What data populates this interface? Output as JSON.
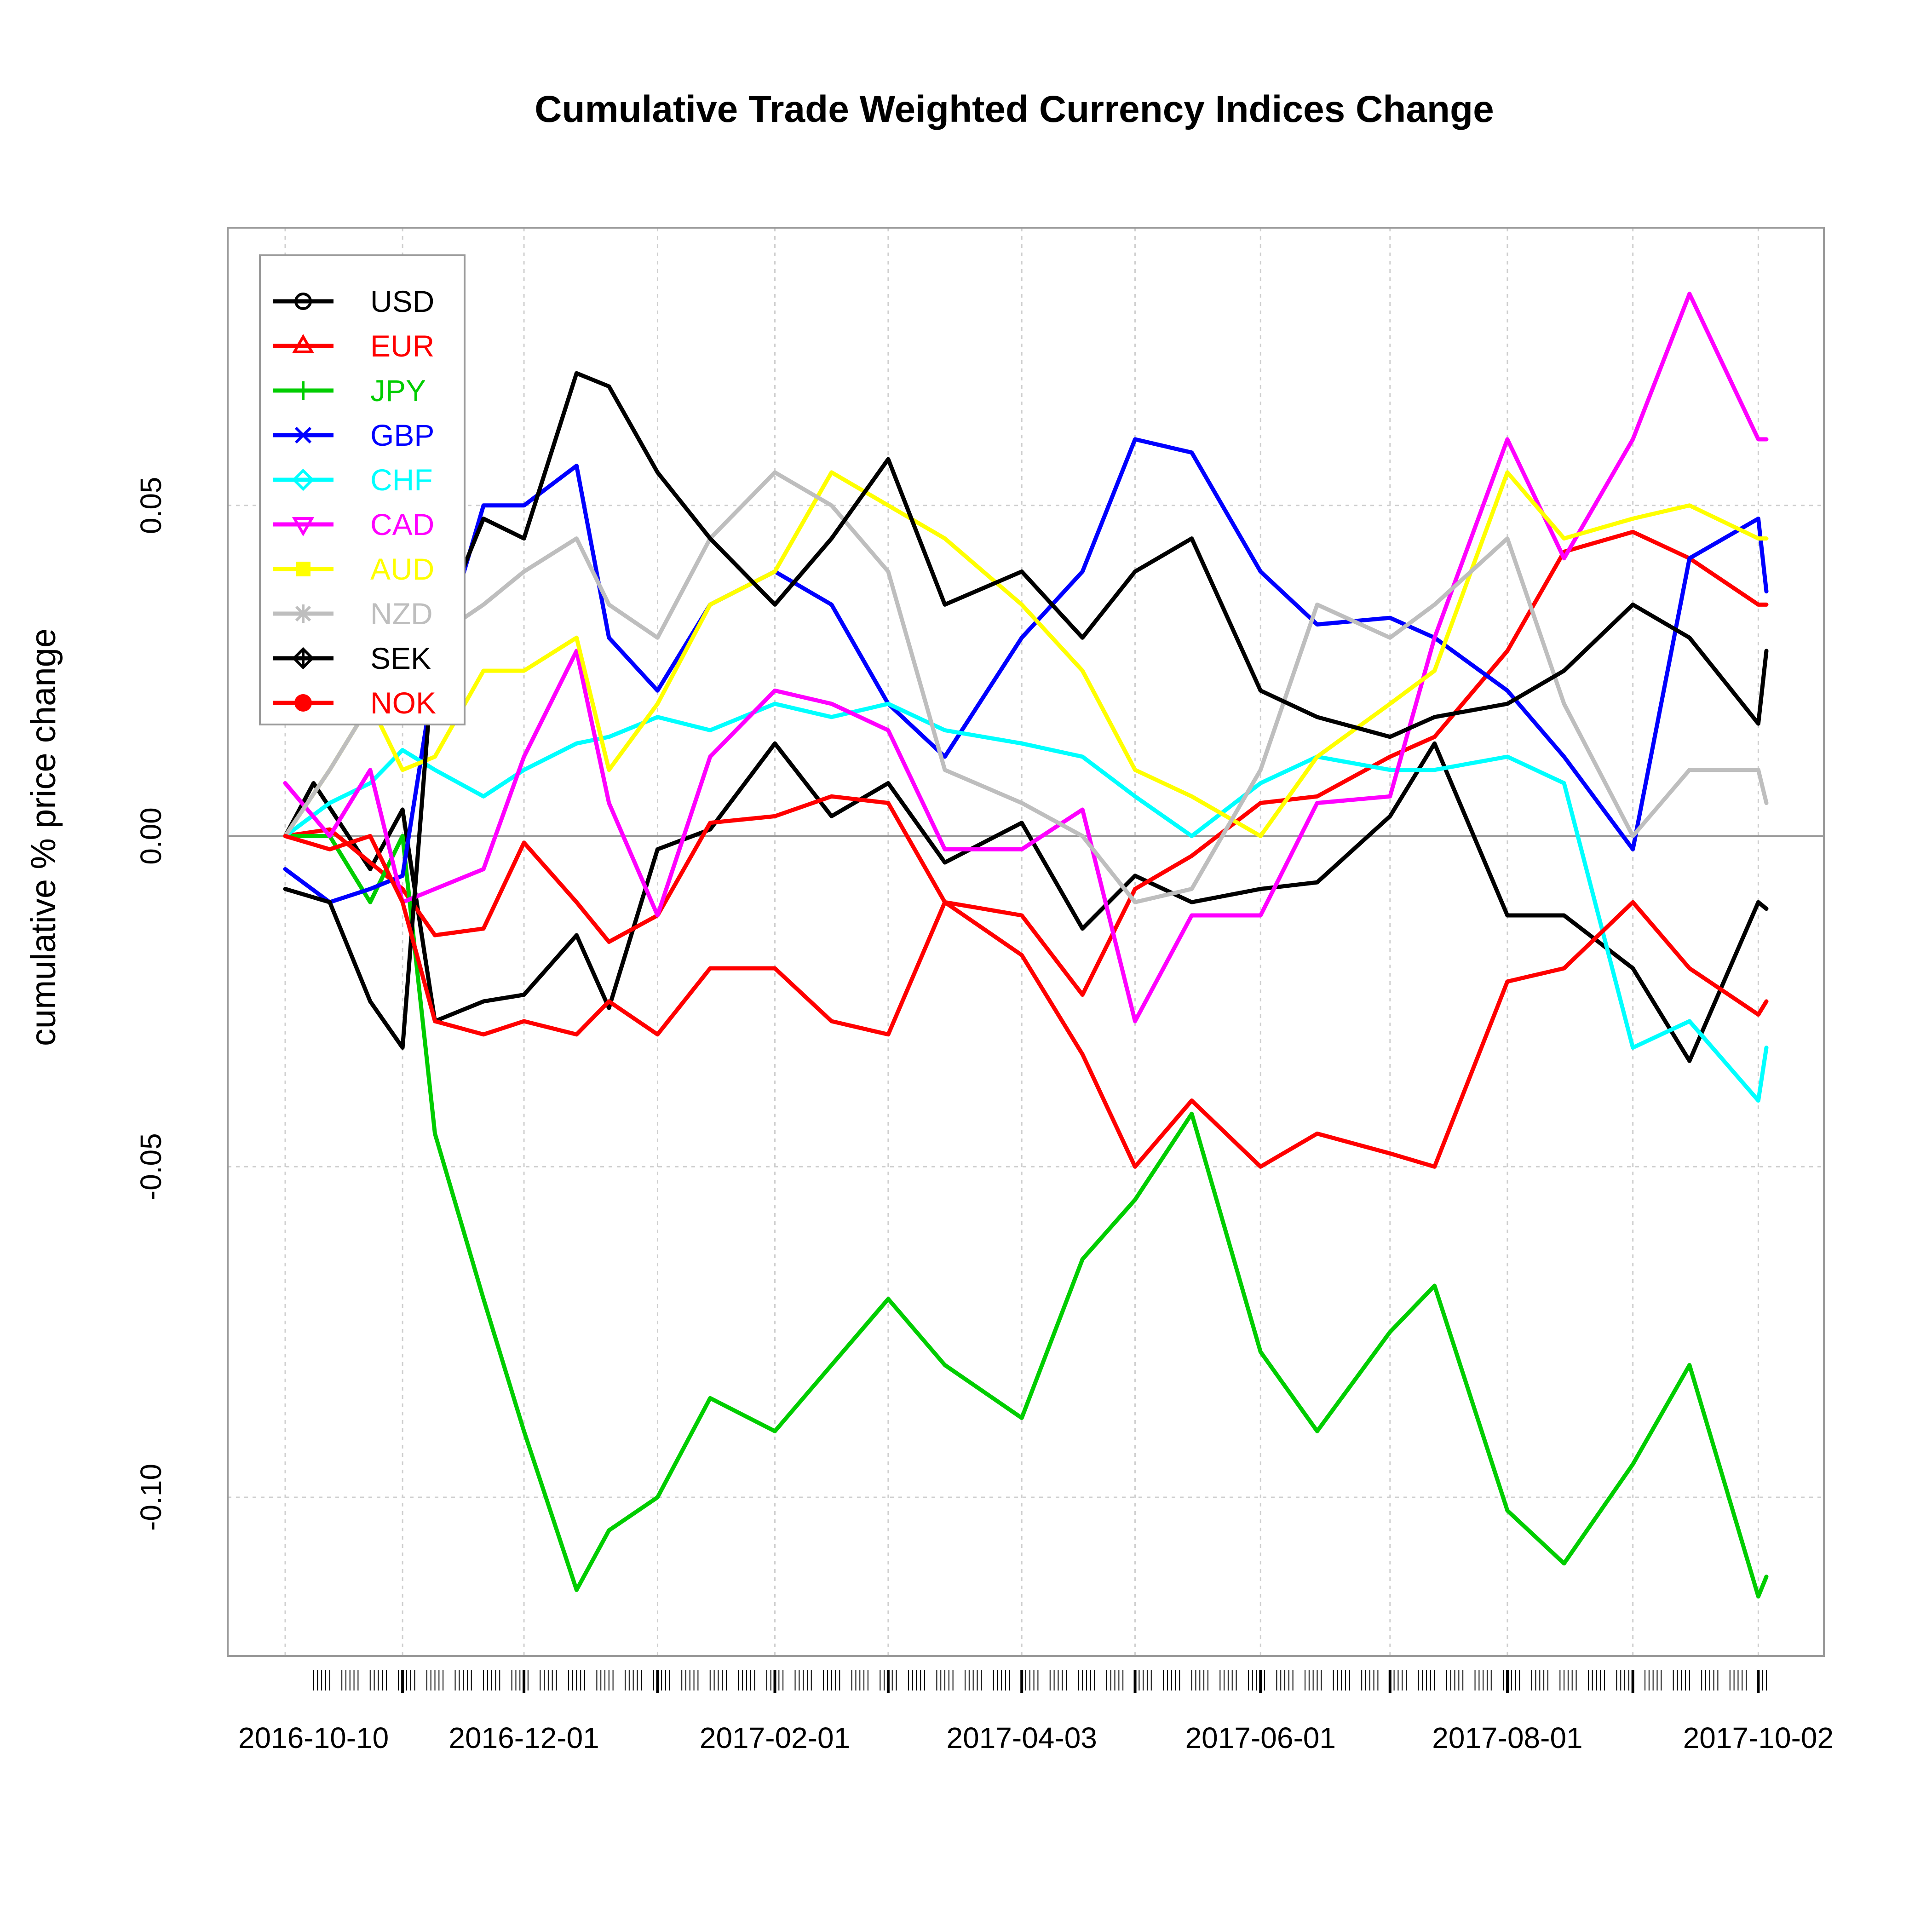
{
  "chart_data": {
    "type": "line",
    "title": "Cumulative Trade Weighted Currency Indices Change",
    "xlabel": "",
    "ylabel": "cumulative % price change",
    "x_range": [
      "2016-10-03",
      "2017-10-04"
    ],
    "ylim": [
      -0.124,
      0.092
    ],
    "y_ticks": [
      -0.1,
      -0.05,
      0.0,
      0.05
    ],
    "y_tick_labels": [
      "-0.10",
      "-0.05",
      "0.00",
      "0.05"
    ],
    "x_tick_dates": [
      "2016-10-10",
      "2016-12-01",
      "2017-02-01",
      "2017-04-03",
      "2017-06-01",
      "2017-08-01",
      "2017-10-02"
    ],
    "x_tick_labels": [
      "2016-10-10",
      "2016-12-01",
      "2017-02-01",
      "2017-04-03",
      "2017-06-01",
      "2017-08-01",
      "2017-10-02"
    ],
    "x_grid_dates": [
      "2016-10-03",
      "2016-11-01",
      "2016-12-01",
      "2017-01-03",
      "2017-02-01",
      "2017-03-01",
      "2017-04-03",
      "2017-05-01",
      "2017-06-01",
      "2017-07-03",
      "2017-08-01",
      "2017-09-01",
      "2017-10-02"
    ],
    "grid": true,
    "zero_line": true,
    "legend_position": "top-left",
    "series": [
      {
        "name": "USD",
        "color": "#000000",
        "marker": "circle",
        "x": [
          "2016-10-03",
          "2016-10-10",
          "2016-10-24",
          "2016-11-01",
          "2016-11-09",
          "2016-11-21",
          "2016-12-01",
          "2016-12-14",
          "2016-12-22",
          "2017-01-03",
          "2017-01-16",
          "2017-02-01",
          "2017-02-15",
          "2017-03-01",
          "2017-03-15",
          "2017-04-03",
          "2017-04-18",
          "2017-05-01",
          "2017-05-15",
          "2017-06-01",
          "2017-06-15",
          "2017-07-03",
          "2017-07-14",
          "2017-08-01",
          "2017-08-15",
          "2017-09-01",
          "2017-09-15",
          "2017-10-02",
          "2017-10-04"
        ],
        "y": [
          0.0,
          0.008,
          -0.005,
          0.004,
          -0.028,
          -0.025,
          -0.024,
          -0.015,
          -0.026,
          -0.002,
          0.001,
          0.014,
          0.003,
          0.008,
          -0.004,
          0.002,
          -0.014,
          -0.006,
          -0.01,
          -0.008,
          -0.007,
          0.003,
          0.014,
          -0.012,
          -0.012,
          -0.02,
          -0.034,
          -0.01,
          -0.011
        ]
      },
      {
        "name": "EUR",
        "color": "#ff0000",
        "marker": "triangle",
        "x": [
          "2016-10-03",
          "2016-10-14",
          "2016-10-24",
          "2016-11-01",
          "2016-11-09",
          "2016-11-21",
          "2016-12-01",
          "2016-12-14",
          "2016-12-22",
          "2017-01-03",
          "2017-01-16",
          "2017-02-01",
          "2017-02-15",
          "2017-03-01",
          "2017-03-15",
          "2017-04-03",
          "2017-04-18",
          "2017-05-01",
          "2017-05-15",
          "2017-06-01",
          "2017-06-15",
          "2017-07-03",
          "2017-07-14",
          "2017-08-01",
          "2017-08-15",
          "2017-09-01",
          "2017-09-15",
          "2017-10-02",
          "2017-10-04"
        ],
        "y": [
          0.0,
          0.001,
          -0.004,
          -0.008,
          -0.015,
          -0.014,
          -0.001,
          -0.01,
          -0.016,
          -0.012,
          0.002,
          0.003,
          0.006,
          0.005,
          -0.01,
          -0.012,
          -0.024,
          -0.008,
          -0.003,
          0.005,
          0.006,
          0.012,
          0.015,
          0.028,
          0.043,
          0.046,
          0.042,
          0.035,
          0.035
        ]
      },
      {
        "name": "JPY",
        "color": "#00cd00",
        "marker": "plus",
        "x": [
          "2016-10-03",
          "2016-10-14",
          "2016-10-24",
          "2016-11-01",
          "2016-11-09",
          "2016-11-21",
          "2016-12-01",
          "2016-12-14",
          "2016-12-22",
          "2017-01-03",
          "2017-01-16",
          "2017-02-01",
          "2017-02-15",
          "2017-03-01",
          "2017-03-15",
          "2017-04-03",
          "2017-04-18",
          "2017-05-01",
          "2017-05-15",
          "2017-06-01",
          "2017-06-15",
          "2017-07-03",
          "2017-07-14",
          "2017-08-01",
          "2017-08-15",
          "2017-09-01",
          "2017-09-15",
          "2017-10-02",
          "2017-10-04"
        ],
        "y": [
          0.0,
          0.0,
          -0.01,
          0.0,
          -0.045,
          -0.07,
          -0.09,
          -0.114,
          -0.105,
          -0.1,
          -0.085,
          -0.09,
          -0.08,
          -0.07,
          -0.08,
          -0.088,
          -0.064,
          -0.055,
          -0.042,
          -0.078,
          -0.09,
          -0.075,
          -0.068,
          -0.102,
          -0.11,
          -0.095,
          -0.08,
          -0.115,
          -0.112
        ]
      },
      {
        "name": "GBP",
        "color": "#0000ff",
        "marker": "cross",
        "x": [
          "2016-10-03",
          "2016-10-14",
          "2016-10-24",
          "2016-11-01",
          "2016-11-09",
          "2016-11-21",
          "2016-12-01",
          "2016-12-14",
          "2016-12-22",
          "2017-01-03",
          "2017-01-16",
          "2017-02-01",
          "2017-02-15",
          "2017-03-01",
          "2017-03-15",
          "2017-04-03",
          "2017-04-18",
          "2017-05-01",
          "2017-05-15",
          "2017-06-01",
          "2017-06-15",
          "2017-07-03",
          "2017-07-14",
          "2017-08-01",
          "2017-08-15",
          "2017-09-01",
          "2017-09-15",
          "2017-10-02",
          "2017-10-04"
        ],
        "y": [
          -0.005,
          -0.01,
          -0.008,
          -0.006,
          0.025,
          0.05,
          0.05,
          0.056,
          0.03,
          0.022,
          0.035,
          0.04,
          0.035,
          0.02,
          0.012,
          0.03,
          0.04,
          0.06,
          0.058,
          0.04,
          0.032,
          0.033,
          0.03,
          0.022,
          0.012,
          -0.002,
          0.042,
          0.048,
          0.037
        ]
      },
      {
        "name": "CHF",
        "color": "#00ffff",
        "marker": "diamond",
        "x": [
          "2016-10-03",
          "2016-10-14",
          "2016-10-24",
          "2016-11-01",
          "2016-11-09",
          "2016-11-21",
          "2016-12-01",
          "2016-12-14",
          "2016-12-22",
          "2017-01-03",
          "2017-01-16",
          "2017-02-01",
          "2017-02-15",
          "2017-03-01",
          "2017-03-15",
          "2017-04-03",
          "2017-04-18",
          "2017-05-01",
          "2017-05-15",
          "2017-06-01",
          "2017-06-15",
          "2017-07-03",
          "2017-07-14",
          "2017-08-01",
          "2017-08-15",
          "2017-09-01",
          "2017-09-15",
          "2017-10-02",
          "2017-10-04"
        ],
        "y": [
          0.0,
          0.005,
          0.008,
          0.013,
          0.01,
          0.006,
          0.01,
          0.014,
          0.015,
          0.018,
          0.016,
          0.02,
          0.018,
          0.02,
          0.016,
          0.014,
          0.012,
          0.006,
          0.0,
          0.008,
          0.012,
          0.01,
          0.01,
          0.012,
          0.008,
          -0.032,
          -0.028,
          -0.04,
          -0.032
        ]
      },
      {
        "name": "CAD",
        "color": "#ff00ff",
        "marker": "triangle-down",
        "x": [
          "2016-10-03",
          "2016-10-14",
          "2016-10-24",
          "2016-11-01",
          "2016-11-09",
          "2016-11-21",
          "2016-12-01",
          "2016-12-14",
          "2016-12-22",
          "2017-01-03",
          "2017-01-16",
          "2017-02-01",
          "2017-02-15",
          "2017-03-01",
          "2017-03-15",
          "2017-04-03",
          "2017-04-18",
          "2017-05-01",
          "2017-05-15",
          "2017-06-01",
          "2017-06-15",
          "2017-07-03",
          "2017-07-14",
          "2017-08-01",
          "2017-08-15",
          "2017-09-01",
          "2017-09-15",
          "2017-10-02",
          "2017-10-04"
        ],
        "y": [
          0.008,
          0.0,
          0.01,
          -0.01,
          -0.008,
          -0.005,
          0.012,
          0.028,
          0.005,
          -0.012,
          0.012,
          0.022,
          0.02,
          0.016,
          -0.002,
          -0.002,
          0.004,
          -0.028,
          -0.012,
          -0.012,
          0.005,
          0.006,
          0.03,
          0.06,
          0.042,
          0.06,
          0.082,
          0.06,
          0.06
        ]
      },
      {
        "name": "AUD",
        "color": "#ffff00",
        "marker": "square",
        "x": [
          "2016-10-03",
          "2016-10-14",
          "2016-10-24",
          "2016-11-01",
          "2016-11-09",
          "2016-11-21",
          "2016-12-01",
          "2016-12-14",
          "2016-12-22",
          "2017-01-03",
          "2017-01-16",
          "2017-02-01",
          "2017-02-15",
          "2017-03-01",
          "2017-03-15",
          "2017-04-03",
          "2017-04-18",
          "2017-05-01",
          "2017-05-15",
          "2017-06-01",
          "2017-06-15",
          "2017-07-03",
          "2017-07-14",
          "2017-08-01",
          "2017-08-15",
          "2017-09-01",
          "2017-09-15",
          "2017-10-02",
          "2017-10-04"
        ],
        "y": [
          0.0,
          0.01,
          0.02,
          0.01,
          0.012,
          0.025,
          0.025,
          0.03,
          0.01,
          0.02,
          0.035,
          0.04,
          0.055,
          0.05,
          0.045,
          0.035,
          0.025,
          0.01,
          0.006,
          0.0,
          0.012,
          0.02,
          0.025,
          0.055,
          0.045,
          0.048,
          0.05,
          0.045,
          0.045
        ]
      },
      {
        "name": "NZD",
        "color": "#bebebe",
        "marker": "asterisk",
        "x": [
          "2016-10-03",
          "2016-10-14",
          "2016-10-24",
          "2016-11-01",
          "2016-11-09",
          "2016-11-21",
          "2016-12-01",
          "2016-12-14",
          "2016-12-22",
          "2017-01-03",
          "2017-01-16",
          "2017-02-01",
          "2017-02-15",
          "2017-03-01",
          "2017-03-15",
          "2017-04-03",
          "2017-04-18",
          "2017-05-01",
          "2017-05-15",
          "2017-06-01",
          "2017-06-15",
          "2017-07-03",
          "2017-07-14",
          "2017-08-01",
          "2017-08-15",
          "2017-09-01",
          "2017-09-15",
          "2017-10-02",
          "2017-10-04"
        ],
        "y": [
          0.0,
          0.01,
          0.02,
          0.028,
          0.03,
          0.035,
          0.04,
          0.045,
          0.035,
          0.03,
          0.045,
          0.055,
          0.05,
          0.04,
          0.01,
          0.005,
          0.0,
          -0.01,
          -0.008,
          0.01,
          0.035,
          0.03,
          0.035,
          0.045,
          0.02,
          0.0,
          0.01,
          0.01,
          0.005
        ]
      },
      {
        "name": "SEK",
        "color": "#000000",
        "marker": "diamond-plus",
        "x": [
          "2016-10-03",
          "2016-10-14",
          "2016-10-24",
          "2016-11-01",
          "2016-11-09",
          "2016-11-21",
          "2016-12-01",
          "2016-12-14",
          "2016-12-22",
          "2017-01-03",
          "2017-01-16",
          "2017-02-01",
          "2017-02-15",
          "2017-03-01",
          "2017-03-15",
          "2017-04-03",
          "2017-04-18",
          "2017-05-01",
          "2017-05-15",
          "2017-06-01",
          "2017-06-15",
          "2017-07-03",
          "2017-07-14",
          "2017-08-01",
          "2017-08-15",
          "2017-09-01",
          "2017-09-15",
          "2017-10-02",
          "2017-10-04"
        ],
        "y": [
          -0.008,
          -0.01,
          -0.025,
          -0.032,
          0.03,
          0.048,
          0.045,
          0.07,
          0.068,
          0.055,
          0.045,
          0.035,
          0.045,
          0.057,
          0.035,
          0.04,
          0.03,
          0.04,
          0.045,
          0.022,
          0.018,
          0.015,
          0.018,
          0.02,
          0.025,
          0.035,
          0.03,
          0.017,
          0.028
        ]
      },
      {
        "name": "NOK",
        "color": "#ff0000",
        "marker": "circle-filled",
        "x": [
          "2016-10-03",
          "2016-10-14",
          "2016-10-24",
          "2016-11-01",
          "2016-11-09",
          "2016-11-21",
          "2016-12-01",
          "2016-12-14",
          "2016-12-22",
          "2017-01-03",
          "2017-01-16",
          "2017-02-01",
          "2017-02-15",
          "2017-03-01",
          "2017-03-15",
          "2017-04-03",
          "2017-04-18",
          "2017-05-01",
          "2017-05-15",
          "2017-06-01",
          "2017-06-15",
          "2017-07-03",
          "2017-07-14",
          "2017-08-01",
          "2017-08-15",
          "2017-09-01",
          "2017-09-15",
          "2017-10-02",
          "2017-10-04"
        ],
        "y": [
          0.0,
          -0.002,
          0.0,
          -0.01,
          -0.028,
          -0.03,
          -0.028,
          -0.03,
          -0.025,
          -0.03,
          -0.02,
          -0.02,
          -0.028,
          -0.03,
          -0.01,
          -0.018,
          -0.033,
          -0.05,
          -0.04,
          -0.05,
          -0.045,
          -0.048,
          -0.05,
          -0.022,
          -0.02,
          -0.01,
          -0.02,
          -0.027,
          -0.025
        ]
      }
    ]
  }
}
